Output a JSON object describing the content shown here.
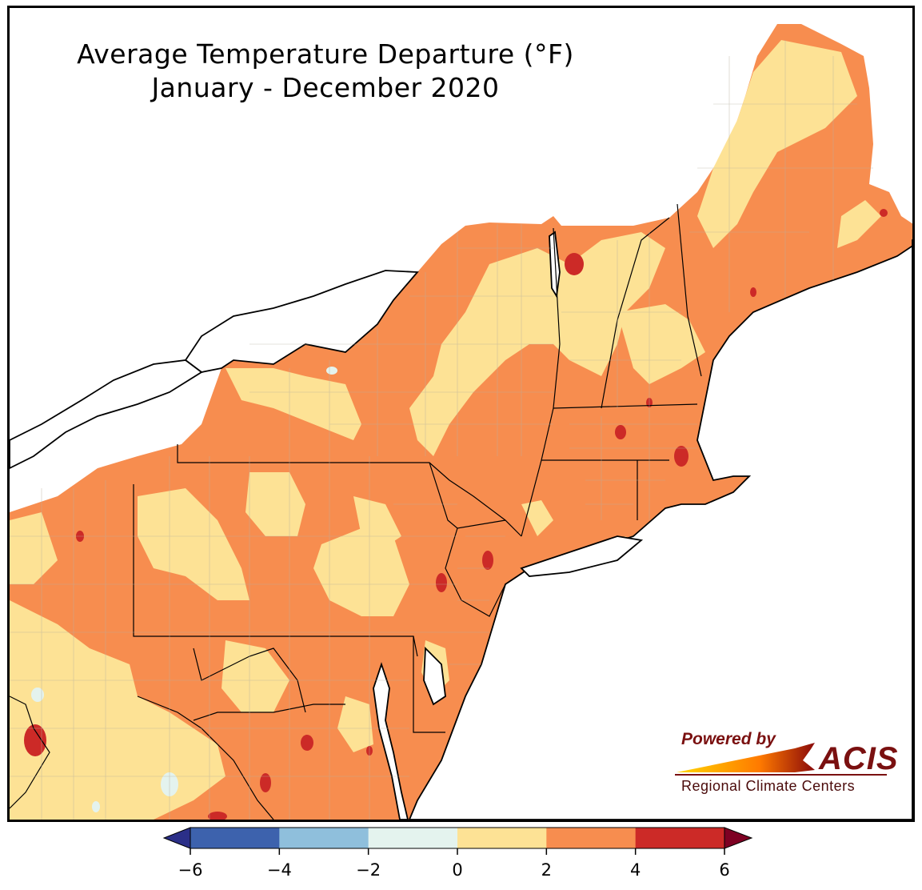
{
  "title": {
    "line1": "Average Temperature Departure (°F)",
    "line2": "January - December 2020"
  },
  "logo": {
    "powered_by": "Powered by",
    "brand": "ACIS",
    "subtitle": "Regional Climate Centers"
  },
  "colors": {
    "neg6_to_neg4": "#3d62ad",
    "neg4_to_neg2": "#8fbfdc",
    "neg2_to_0": "#e4f3ee",
    "0_to_2": "#fde295",
    "2_to_4": "#f78d4f",
    "4_to_6": "#cc2a27",
    "over": "#7e0123",
    "under": "#2b2f88",
    "water": "#ffffff",
    "boundary": "#000000"
  },
  "colorbar": {
    "ticks": [
      "−6",
      "−4",
      "−2",
      "0",
      "2",
      "4",
      "6"
    ],
    "bins": [
      {
        "range": "-6 to -4",
        "color": "#3d62ad"
      },
      {
        "range": "-4 to -2",
        "color": "#8fbfdc"
      },
      {
        "range": "-2 to 0",
        "color": "#e4f3ee"
      },
      {
        "range": "0 to 2",
        "color": "#fde295"
      },
      {
        "range": "2 to 4",
        "color": "#f78d4f"
      },
      {
        "range": "4 to 6",
        "color": "#cc2a27"
      }
    ],
    "extend": "both"
  }
}
